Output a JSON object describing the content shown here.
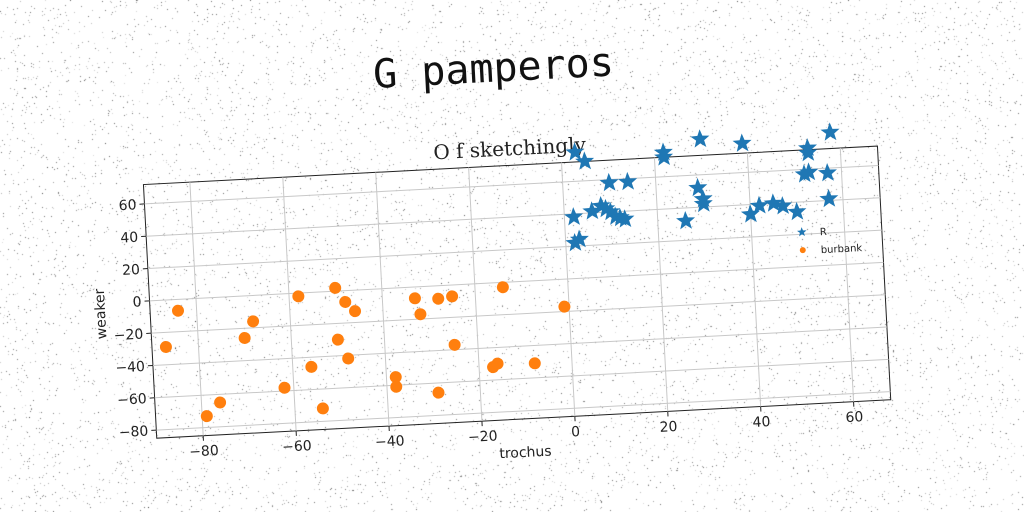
{
  "header": {
    "title": "G pamperos"
  },
  "chart_data": {
    "type": "scatter",
    "title": "O f sketchingly",
    "xlabel": "trochus",
    "ylabel": "weaker",
    "xlim": [
      -90,
      68
    ],
    "ylim": [
      -85,
      72
    ],
    "xticks": [
      -80,
      -60,
      -40,
      -20,
      0,
      20,
      40,
      60
    ],
    "yticks": [
      -80,
      -60,
      -40,
      -20,
      0,
      20,
      40,
      60
    ],
    "grid": true,
    "legend_position": "right",
    "series": [
      {
        "name": "R",
        "marker": "star",
        "color": "#1f77b4",
        "points": [
          [
            3,
            78
          ],
          [
            5,
            72
          ],
          [
            10,
            58
          ],
          [
            14,
            58
          ],
          [
            22,
            75
          ],
          [
            22,
            72
          ],
          [
            30,
            82
          ],
          [
            39,
            78
          ],
          [
            53,
            73
          ],
          [
            53,
            70
          ],
          [
            58,
            82
          ],
          [
            2,
            38
          ],
          [
            6,
            41
          ],
          [
            8,
            44
          ],
          [
            9,
            42
          ],
          [
            10,
            40
          ],
          [
            11,
            37
          ],
          [
            12,
            36
          ],
          [
            13,
            35
          ],
          [
            29,
            52
          ],
          [
            30,
            45
          ],
          [
            30,
            42
          ],
          [
            26,
            32
          ],
          [
            40,
            34
          ],
          [
            42,
            39
          ],
          [
            45,
            40
          ],
          [
            47,
            38
          ],
          [
            50,
            34
          ],
          [
            52,
            57
          ],
          [
            53,
            58
          ],
          [
            57,
            57
          ],
          [
            57,
            41
          ],
          [
            2,
            22
          ],
          [
            3,
            24
          ]
        ]
      },
      {
        "name": "burbank",
        "marker": "circle",
        "color": "#ff7f0e",
        "points": [
          [
            -84,
            -7
          ],
          [
            -87,
            -29
          ],
          [
            -68,
            -16
          ],
          [
            -70,
            -26
          ],
          [
            -58,
            -2
          ],
          [
            -50,
            2
          ],
          [
            -48,
            -7
          ],
          [
            -46,
            -13
          ],
          [
            -50,
            -30
          ],
          [
            -56,
            -46
          ],
          [
            -48,
            -42
          ],
          [
            -62,
            -58
          ],
          [
            -76,
            -65
          ],
          [
            -79,
            -73
          ],
          [
            -54,
            -72
          ],
          [
            -38,
            -55
          ],
          [
            -38,
            -61
          ],
          [
            -33,
            -7
          ],
          [
            -32,
            -17
          ],
          [
            -28,
            -8
          ],
          [
            -25,
            -7
          ],
          [
            -25,
            -37
          ],
          [
            -29,
            -66
          ],
          [
            -17,
            -52
          ],
          [
            -16,
            -50
          ],
          [
            -14,
            -3
          ],
          [
            -8,
            -51
          ],
          [
            -1,
            -17
          ]
        ]
      }
    ]
  }
}
